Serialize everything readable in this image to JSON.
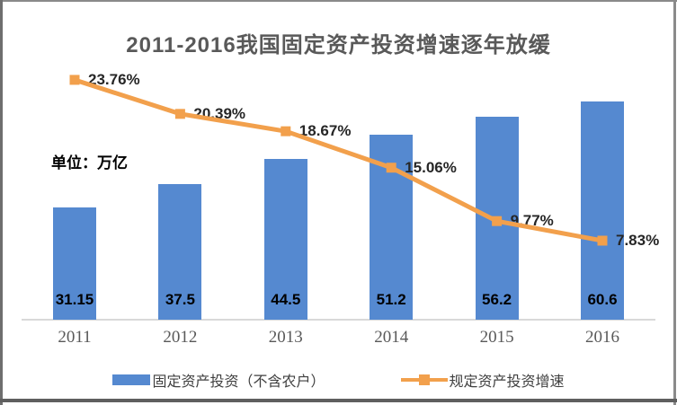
{
  "chart_data": {
    "type": "bar+line",
    "title": "2011-2016我国固定资产投资增速逐年放缓",
    "unit_note": "单位：万亿",
    "categories": [
      "2011",
      "2012",
      "2013",
      "2014",
      "2015",
      "2016"
    ],
    "series": [
      {
        "name": "固定资产投资（不含农户）",
        "type": "bar",
        "axis": "primary",
        "unit": "万亿",
        "values": [
          31.15,
          37.5,
          44.5,
          51.2,
          56.2,
          60.6
        ],
        "labels": [
          "31.15",
          "37.5",
          "44.5",
          "51.2",
          "56.2",
          "60.6"
        ],
        "color": "#5589D0",
        "ylim": [
          0,
          70
        ]
      },
      {
        "name": "规定资产投资增速",
        "type": "line",
        "axis": "secondary",
        "unit": "%",
        "values": [
          23.76,
          20.39,
          18.67,
          15.06,
          9.77,
          7.83
        ],
        "labels": [
          "23.76%",
          "20.39%",
          "18.67%",
          "15.06%",
          "9.77%",
          "7.83%"
        ],
        "color": "#F2A04C",
        "marker": "square",
        "ylim": [
          0,
          25
        ]
      }
    ],
    "legend_position": "bottom",
    "grid": false,
    "axes_visible": {
      "x": true,
      "y": false
    },
    "axis_line_color": "#D9D9D9"
  }
}
